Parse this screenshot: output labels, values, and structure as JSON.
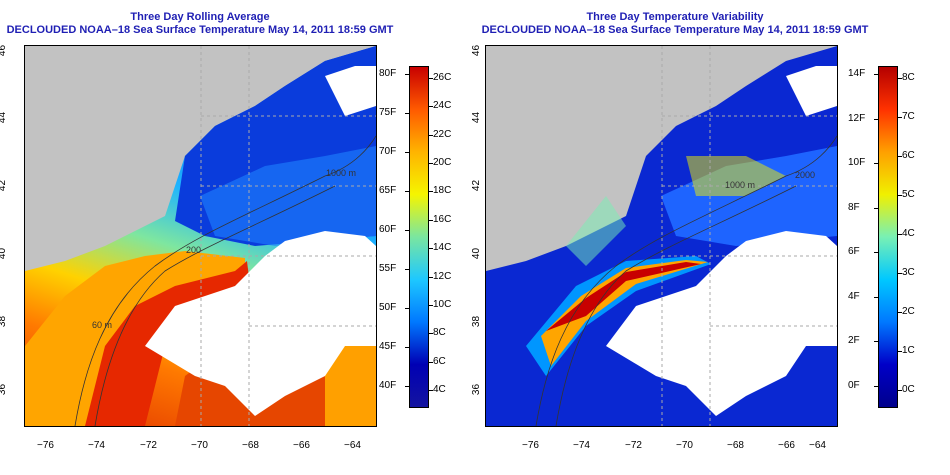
{
  "panels": [
    {
      "title": "Three Day Rolling Average",
      "subtitle": "DECLOUDED NOAA–18 Sea Surface Temperature May 14, 2011 18:59 GMT",
      "x_ticks": [
        "−76",
        "−74",
        "−72",
        "−70",
        "−68",
        "−66",
        "−64"
      ],
      "y_ticks": [
        "46",
        "44",
        "42",
        "40",
        "38",
        "36"
      ],
      "contours": [
        "1000 m",
        "200",
        "60 m"
      ],
      "colorbar": {
        "left_labels": [
          "80F",
          "75F",
          "70F",
          "65F",
          "60F",
          "55F",
          "50F",
          "45F",
          "40F"
        ],
        "right_labels": [
          "26C",
          "24C",
          "22C",
          "20C",
          "18C",
          "16C",
          "14C",
          "12C",
          "10C",
          "8C",
          "6C",
          "4C"
        ],
        "stops": [
          "#c80000",
          "#ff5a00",
          "#ffb400",
          "#f5f500",
          "#7ae6a0",
          "#1ec8ff",
          "#0078ff",
          "#0000b4",
          "#1414a0"
        ]
      }
    },
    {
      "title": "Three Day Temperature Variability",
      "subtitle": "DECLOUDED NOAA–18 Sea Surface Temperature May 14, 2011 18:59 GMT",
      "x_ticks": [
        "−76",
        "−74",
        "−72",
        "−70",
        "−68",
        "−66",
        "−64"
      ],
      "y_ticks": [
        "46",
        "44",
        "42",
        "40",
        "38",
        "36"
      ],
      "contours": [
        "1000 m",
        "2000"
      ],
      "colorbar": {
        "left_labels": [
          "14F",
          "12F",
          "10F",
          "8F",
          "6F",
          "4F",
          "2F",
          "0F"
        ],
        "right_labels": [
          "8C",
          "7C",
          "6C",
          "5C",
          "4C",
          "3C",
          "2C",
          "1C",
          "0C"
        ],
        "stops": [
          "#b40000",
          "#ff3200",
          "#ffa000",
          "#f0f000",
          "#78f0b4",
          "#00c8ff",
          "#0078ff",
          "#0000c8",
          "#00008c"
        ]
      }
    }
  ],
  "colors": {
    "land": "#c2c2c2",
    "title": "#1f1fb4",
    "grid": "#aaaaaa"
  }
}
